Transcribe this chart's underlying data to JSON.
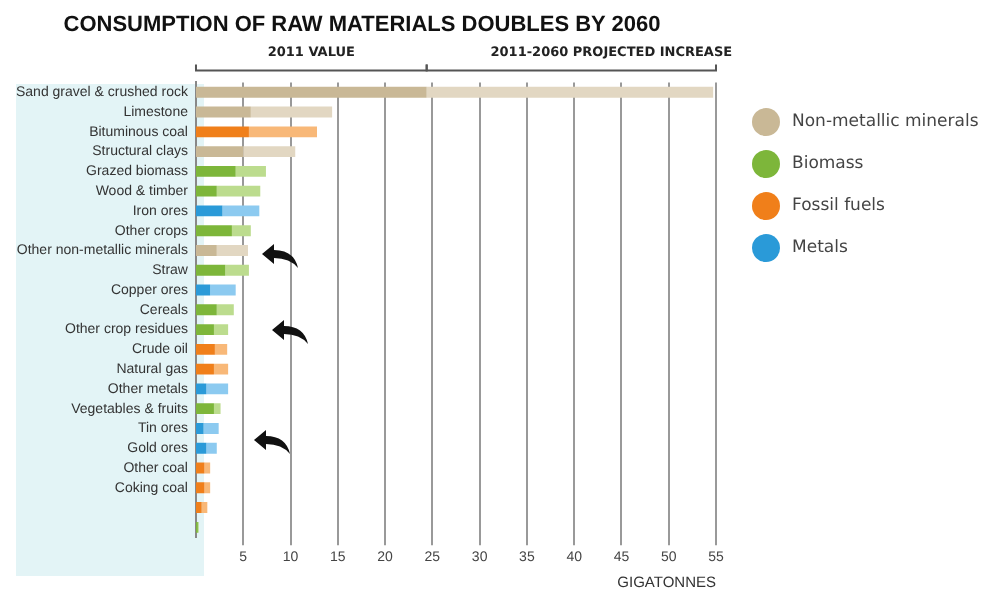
{
  "chart_data": {
    "type": "bar",
    "orientation": "horizontal",
    "stacked": true,
    "title": "CONSUMPTION OF RAW MATERIALS DOUBLES BY 2060",
    "xlabel": "GIGATONNES",
    "categories": [
      "Sand gravel & crushed rock",
      "Limestone",
      "Bituminous coal",
      "Structural clays",
      "Grazed biomass",
      "Wood & timber",
      "Iron ores",
      "Other crops",
      "Other non-metallic minerals",
      "Straw",
      "Copper ores",
      "Cereals",
      "Other crop residues",
      "Crude oil",
      "Natural gas",
      "Other metals",
      "Vegetables & fruits",
      "Tin ores",
      "Gold ores",
      "Other coal",
      "Coking coal",
      null,
      null
    ],
    "series": [
      {
        "colors": [
          "#c9b896",
          "#c9b896",
          "#f07f1a",
          "#c9b896",
          "#7db63a",
          "#7db63a",
          "#2a9ad8",
          "#7db63a",
          "#c9b896",
          "#7db63a",
          "#2a9ad8",
          "#7db63a",
          "#7db63a",
          "#f07f1a",
          "#f07f1a",
          "#2a9ad8",
          "#7db63a",
          "#2a9ad8",
          "#2a9ad8",
          "#f07f1a",
          "#f07f1a",
          "#f07f1a",
          "#7db63a"
        ],
        "values": [
          24.4,
          5.8,
          5.6,
          5,
          4.2,
          2.2,
          2.8,
          3.8,
          2.2,
          3.1,
          1.5,
          2.2,
          1.9,
          2,
          1.9,
          1.1,
          1.9,
          0.8,
          1.1,
          0.9,
          0.9,
          0.6,
          0.2
        ]
      },
      {
        "colors": [
          "#e2d7c2",
          "#e2d7c2",
          "#f8b878",
          "#e2d7c2",
          "#bcdc8e",
          "#bcdc8e",
          "#8ccaf0",
          "#bcdc8e",
          "#e2d7c2",
          "#bcdc8e",
          "#8ccaf0",
          "#bcdc8e",
          "#bcdc8e",
          "#f8b878",
          "#f8b878",
          "#8ccaf0",
          "#bcdc8e",
          "#8ccaf0",
          "#8ccaf0",
          "#f8b878",
          "#f8b878",
          "#f8b878",
          "#bcdc8e"
        ],
        "values": [
          30.3,
          8.6,
          7.2,
          5.5,
          3.2,
          4.6,
          3.9,
          2,
          3.3,
          2.5,
          2.7,
          1.8,
          1.5,
          1.3,
          1.5,
          2.3,
          0.7,
          1.6,
          1.1,
          0.6,
          0.6,
          0.6,
          0.1
        ]
      }
    ],
    "xlim": [
      0,
      55
    ],
    "xticks": [
      5,
      10,
      15,
      20,
      25,
      30,
      35,
      40,
      45,
      50,
      55
    ],
    "grid": "x",
    "legend": false,
    "annotations": [
      "2011 VALUE",
      "2011-2060 PROJECTED INCREASE",
      "Non-metallic minerals",
      "Biomass",
      "Fossil fuels",
      "Metals"
    ]
  }
}
